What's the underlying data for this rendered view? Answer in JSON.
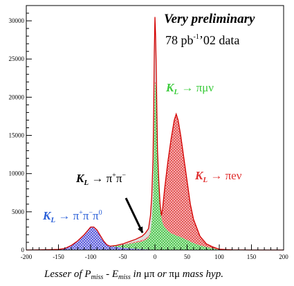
{
  "chart_data": {
    "type": "area",
    "title": "",
    "xlabel_parts": {
      "a": "Lesser of ",
      "p": "P",
      "p_sub": "miss",
      "dash": " - ",
      "e": "E",
      "e_sub": "miss",
      "in": " in ",
      "mupi": "μπ",
      "or": " or ",
      "pimu": "πμ",
      "tail": " mass hyp."
    },
    "ylabel": "",
    "xlim": [
      -200,
      200
    ],
    "ylim": [
      0,
      32000
    ],
    "x_ticks": [
      -200,
      -150,
      -100,
      -50,
      0,
      50,
      100,
      150,
      200
    ],
    "y_ticks": [
      0,
      5000,
      10000,
      15000,
      20000,
      25000,
      30000
    ],
    "headline": "Very preliminary",
    "subline": {
      "base": "78 pb",
      "sup": "-1",
      "rest": "’02 data"
    },
    "colors": {
      "data": "#d40000",
      "ke3": "#e03030",
      "kmu3": "#3ccc3c",
      "k3pi": "#2a2acc",
      "kpipi": "#000000",
      "axis": "#000000"
    },
    "annotations": {
      "ke3": {
        "k": "K",
        "sub": "L",
        "arrow": " → ",
        "decay": "πeν"
      },
      "kmu3": {
        "k": "K",
        "sub": "L",
        "arrow": " → ",
        "decay": "πμν"
      },
      "kpipi": {
        "k": "K",
        "sub": "L",
        "arrow": " → ",
        "d1": "π",
        "s1": "+",
        "d2": "π",
        "s2": "−"
      },
      "k3pi": {
        "k": "K",
        "sub": "L",
        "arrow": " → ",
        "d1": "π",
        "s1": "+",
        "d2": "π",
        "s2": "−",
        "d3": "π",
        "s3": "0"
      }
    },
    "series": [
      {
        "x": [
          -200,
          -180,
          -160,
          -150,
          -140,
          -130,
          -120,
          -115,
          -110,
          -105,
          -100,
          -95,
          -90,
          -85,
          -80,
          -75,
          -70,
          -60,
          -50,
          -40,
          -30,
          -20,
          -15,
          -10,
          -7,
          -5,
          -3,
          -2,
          -1,
          0,
          1,
          2,
          3,
          4,
          6,
          8,
          10,
          12,
          15,
          20,
          25,
          30,
          33,
          36,
          40,
          45,
          50,
          55,
          60,
          70,
          80,
          90,
          100,
          120,
          150,
          200
        ],
        "y": [
          0,
          20,
          50,
          80,
          200,
          600,
          1200,
          1600,
          2000,
          2500,
          3000,
          3000,
          2600,
          1900,
          1200,
          700,
          500,
          600,
          800,
          1100,
          1400,
          1800,
          2200,
          2800,
          4500,
          7000,
          12000,
          18000,
          26000,
          30500,
          28000,
          24000,
          18000,
          13000,
          9000,
          6000,
          4500,
          5500,
          8000,
          11500,
          14500,
          17000,
          17800,
          17000,
          15000,
          12000,
          9000,
          6000,
          4000,
          1800,
          800,
          400,
          100,
          20,
          0,
          0
        ]
      },
      {
        "x": [
          -200,
          -180,
          -160,
          -150,
          -140,
          -130,
          -120,
          -115,
          -110,
          -105,
          -100,
          -95,
          -90,
          -85,
          -80,
          -75,
          -70,
          -60,
          -50,
          -40,
          -30,
          -20,
          -15,
          -10,
          -7,
          -5,
          -3,
          -2,
          -1,
          0,
          1,
          2,
          3,
          4,
          6,
          8,
          10,
          12,
          15,
          20,
          25,
          30,
          33,
          36,
          40,
          45,
          50,
          55,
          60,
          70,
          80,
          90,
          100,
          120,
          150,
          200
        ],
        "y": [
          0,
          20,
          50,
          80,
          200,
          600,
          1200,
          1600,
          2000,
          2500,
          3000,
          3000,
          2600,
          1900,
          1200,
          700,
          500,
          550,
          700,
          900,
          1100,
          1300,
          1500,
          1800,
          2500,
          4000,
          7000,
          12000,
          18000,
          22000,
          22000,
          21000,
          18000,
          13000,
          9000,
          6000,
          4500,
          5500,
          8000,
          11500,
          14500,
          17000,
          17800,
          17000,
          15000,
          12000,
          9000,
          6000,
          4000,
          1800,
          800,
          400,
          100,
          20,
          0,
          0
        ]
      },
      {
        "x": [
          -200,
          -180,
          -160,
          -150,
          -140,
          -130,
          -120,
          -115,
          -110,
          -105,
          -100,
          -95,
          -90,
          -85,
          -80,
          -75,
          -70,
          -60,
          -50,
          -40,
          -30,
          -20,
          -15,
          -10,
          -7,
          -5,
          -3,
          -2,
          -1,
          0,
          1,
          2,
          3,
          4,
          6,
          8,
          10,
          12,
          15,
          20,
          25,
          30,
          33,
          36,
          40,
          45,
          50,
          55,
          60,
          70,
          80,
          90,
          100,
          120,
          150,
          200
        ],
        "y": [
          0,
          20,
          50,
          80,
          200,
          600,
          1200,
          1600,
          2000,
          2500,
          3000,
          3000,
          2600,
          1900,
          1200,
          700,
          500,
          550,
          650,
          800,
          950,
          1100,
          1300,
          1600,
          2300,
          3800,
          6800,
          11800,
          17800,
          21800,
          21800,
          20800,
          17800,
          12800,
          8800,
          5800,
          4200,
          3500,
          3000,
          2500,
          2200,
          2000,
          1900,
          1800,
          1700,
          1500,
          1300,
          1100,
          900,
          600,
          400,
          200,
          50,
          10,
          0,
          0
        ]
      },
      {
        "x": [
          -200,
          -180,
          -160,
          -150,
          -140,
          -130,
          -120,
          -115,
          -110,
          -105,
          -100,
          -95,
          -90,
          -85,
          -80,
          -75,
          -70,
          -60,
          -50,
          -40,
          -30,
          -20,
          -15,
          -10,
          -7,
          -5,
          -3,
          -2,
          -1,
          0,
          1,
          2,
          3,
          4,
          6,
          8,
          10,
          12,
          15,
          20,
          25,
          30,
          33,
          36,
          40,
          45,
          50,
          55,
          60,
          70,
          80,
          90,
          100,
          120,
          150,
          200
        ],
        "y": [
          0,
          20,
          50,
          80,
          200,
          600,
          1200,
          1600,
          2000,
          2500,
          3000,
          3000,
          2600,
          1900,
          1200,
          700,
          500,
          400,
          300,
          200,
          150,
          100,
          80,
          60,
          50,
          40,
          30,
          20,
          10,
          0,
          0,
          0,
          0,
          0,
          0,
          0,
          0,
          0,
          0,
          0,
          0,
          0,
          0,
          0,
          0,
          0,
          0,
          0,
          0,
          0,
          0,
          0,
          0,
          0,
          0,
          0
        ]
      }
    ]
  }
}
